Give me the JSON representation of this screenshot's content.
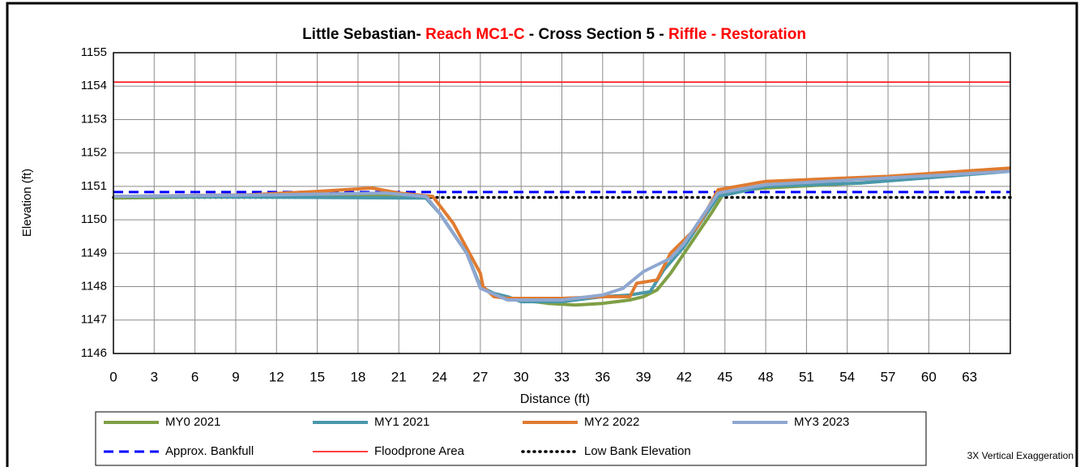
{
  "chart_data": {
    "type": "line",
    "title_parts": [
      {
        "text": "Little Sebastian- ",
        "color": "#000000"
      },
      {
        "text": "Reach MC1-C",
        "color": "#ff0000"
      },
      {
        "text": " - Cross Section 5 - ",
        "color": "#000000"
      },
      {
        "text": "Riffle - Restoration",
        "color": "#ff0000"
      }
    ],
    "x_label": "Distance (ft)",
    "y_label": "Elevation (ft)",
    "annotation": "3X Vertical Exaggeration",
    "xlim": [
      0,
      66
    ],
    "xticks": [
      0,
      3,
      6,
      9,
      12,
      15,
      18,
      21,
      24,
      27,
      30,
      33,
      36,
      39,
      42,
      45,
      48,
      51,
      54,
      57,
      60,
      63
    ],
    "ylim": [
      1146,
      1155
    ],
    "yticks": [
      1146,
      1147,
      1148,
      1149,
      1150,
      1151,
      1152,
      1153,
      1154,
      1155
    ],
    "grid": true,
    "series": [
      {
        "name": "MY0 2021",
        "color": "#7f9f45",
        "style": "solid",
        "x": [
          0,
          10,
          20,
          23,
          24,
          26,
          27,
          28,
          30,
          32,
          34,
          36,
          38,
          39,
          40,
          41,
          42,
          43,
          44,
          45,
          48,
          55,
          60,
          66
        ],
        "values": [
          1150.65,
          1150.7,
          1150.75,
          1150.65,
          1150.2,
          1149.0,
          1148.0,
          1147.75,
          1147.6,
          1147.5,
          1147.45,
          1147.5,
          1147.6,
          1147.7,
          1147.9,
          1148.4,
          1149.0,
          1149.6,
          1150.2,
          1150.85,
          1150.95,
          1151.1,
          1151.3,
          1151.5
        ]
      },
      {
        "name": "MY1 2021",
        "color": "#4a98ab",
        "style": "solid",
        "x": [
          0,
          23,
          24,
          26,
          27,
          28,
          29,
          30,
          31,
          33,
          36,
          38,
          39.5,
          40.5,
          42,
          43,
          44.5,
          48,
          55,
          66
        ],
        "values": [
          1150.7,
          1150.65,
          1150.2,
          1149.0,
          1148.0,
          1147.8,
          1147.7,
          1147.55,
          1147.55,
          1147.55,
          1147.7,
          1147.75,
          1147.85,
          1148.5,
          1149.2,
          1149.8,
          1150.7,
          1151.0,
          1151.1,
          1151.45
        ]
      },
      {
        "name": "MY2 2022",
        "color": "#e07b30",
        "style": "solid",
        "x": [
          0,
          10,
          15,
          19,
          21,
          23.5,
          25,
          27,
          27.2,
          28,
          29,
          31,
          33,
          36,
          38,
          38.5,
          40,
          41,
          43,
          44.5,
          48,
          57,
          66
        ],
        "values": [
          1150.7,
          1150.75,
          1150.85,
          1150.95,
          1150.8,
          1150.7,
          1149.9,
          1148.4,
          1148.0,
          1147.7,
          1147.65,
          1147.65,
          1147.65,
          1147.7,
          1147.7,
          1148.1,
          1148.2,
          1149.0,
          1149.8,
          1150.9,
          1151.15,
          1151.3,
          1151.55
        ]
      },
      {
        "name": "MY3 2023",
        "color": "#8fa7d0",
        "style": "solid",
        "x": [
          0,
          12,
          20,
          23,
          24,
          26,
          27,
          29,
          31,
          33,
          36,
          37.5,
          39,
          41,
          42,
          44.5,
          48,
          66
        ],
        "values": [
          1150.7,
          1150.75,
          1150.8,
          1150.7,
          1150.2,
          1149.0,
          1147.95,
          1147.6,
          1147.6,
          1147.6,
          1147.75,
          1147.95,
          1148.45,
          1148.85,
          1149.3,
          1150.8,
          1151.05,
          1151.45
        ]
      }
    ],
    "reference_lines": [
      {
        "name": "Approx. Bankfull",
        "color": "#0000ff",
        "style": "dashed",
        "value": 1150.83
      },
      {
        "name": "Floodprone Area",
        "color": "#ff0000",
        "style": "thin",
        "value": 1154.12
      },
      {
        "name": "Low Bank Elevation",
        "color": "#000000",
        "style": "dotted",
        "value": 1150.67
      }
    ]
  }
}
